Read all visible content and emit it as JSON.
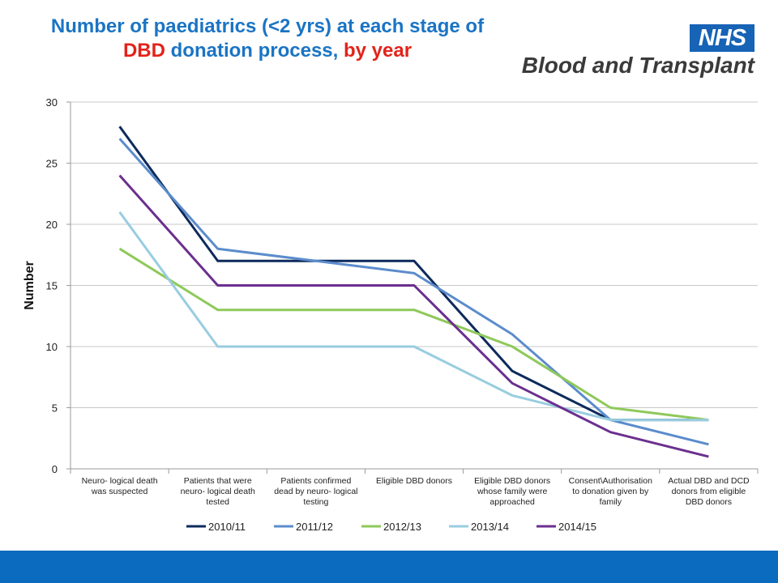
{
  "title": {
    "line1": "Number of paediatrics (<2 yrs) at each stage of",
    "line2_red": "DBD",
    "line2_mid": " donation process, ",
    "line2_red2": "by year"
  },
  "logo": {
    "nhs": "NHS",
    "org": "Blood and Transplant",
    "nhs_color": "#1763b6"
  },
  "chart_data": {
    "type": "line",
    "title": "Number of paediatrics (<2 yrs) at each stage of DBD donation process, by year",
    "ylabel": "Number",
    "xlabel": "",
    "ylim": [
      0,
      30
    ],
    "yticks": [
      0,
      5,
      10,
      15,
      20,
      25,
      30
    ],
    "grid": true,
    "legend": "bottom",
    "categories": [
      [
        "Neuro- logical death",
        "was suspected"
      ],
      [
        "Patients that were",
        "neuro- logical death",
        "tested"
      ],
      [
        "Patients confirmed",
        "dead by neuro- logical",
        "testing"
      ],
      [
        "Eligible DBD donors"
      ],
      [
        "Eligible DBD donors",
        "whose family were",
        "approached"
      ],
      [
        "Consent\\Authorisation",
        "to donation given by",
        "family"
      ],
      [
        "Actual DBD and DCD",
        "donors from eligible",
        "DBD donors"
      ]
    ],
    "series": [
      {
        "name": "2010/11",
        "color": "#0d2a5c",
        "values": [
          28,
          17,
          17,
          17,
          8,
          4,
          4
        ]
      },
      {
        "name": "2011/12",
        "color": "#5b8ccc",
        "values": [
          27,
          18,
          17,
          16,
          11,
          4,
          2
        ]
      },
      {
        "name": "2012/13",
        "color": "#8ec95a",
        "values": [
          18,
          13,
          13,
          13,
          10,
          5,
          4
        ]
      },
      {
        "name": "2013/14",
        "color": "#98cde0",
        "values": [
          21,
          10,
          10,
          10,
          6,
          4,
          4
        ]
      },
      {
        "name": "2014/15",
        "color": "#6b2f8f",
        "values": [
          24,
          15,
          15,
          15,
          7,
          3,
          1
        ]
      }
    ]
  }
}
